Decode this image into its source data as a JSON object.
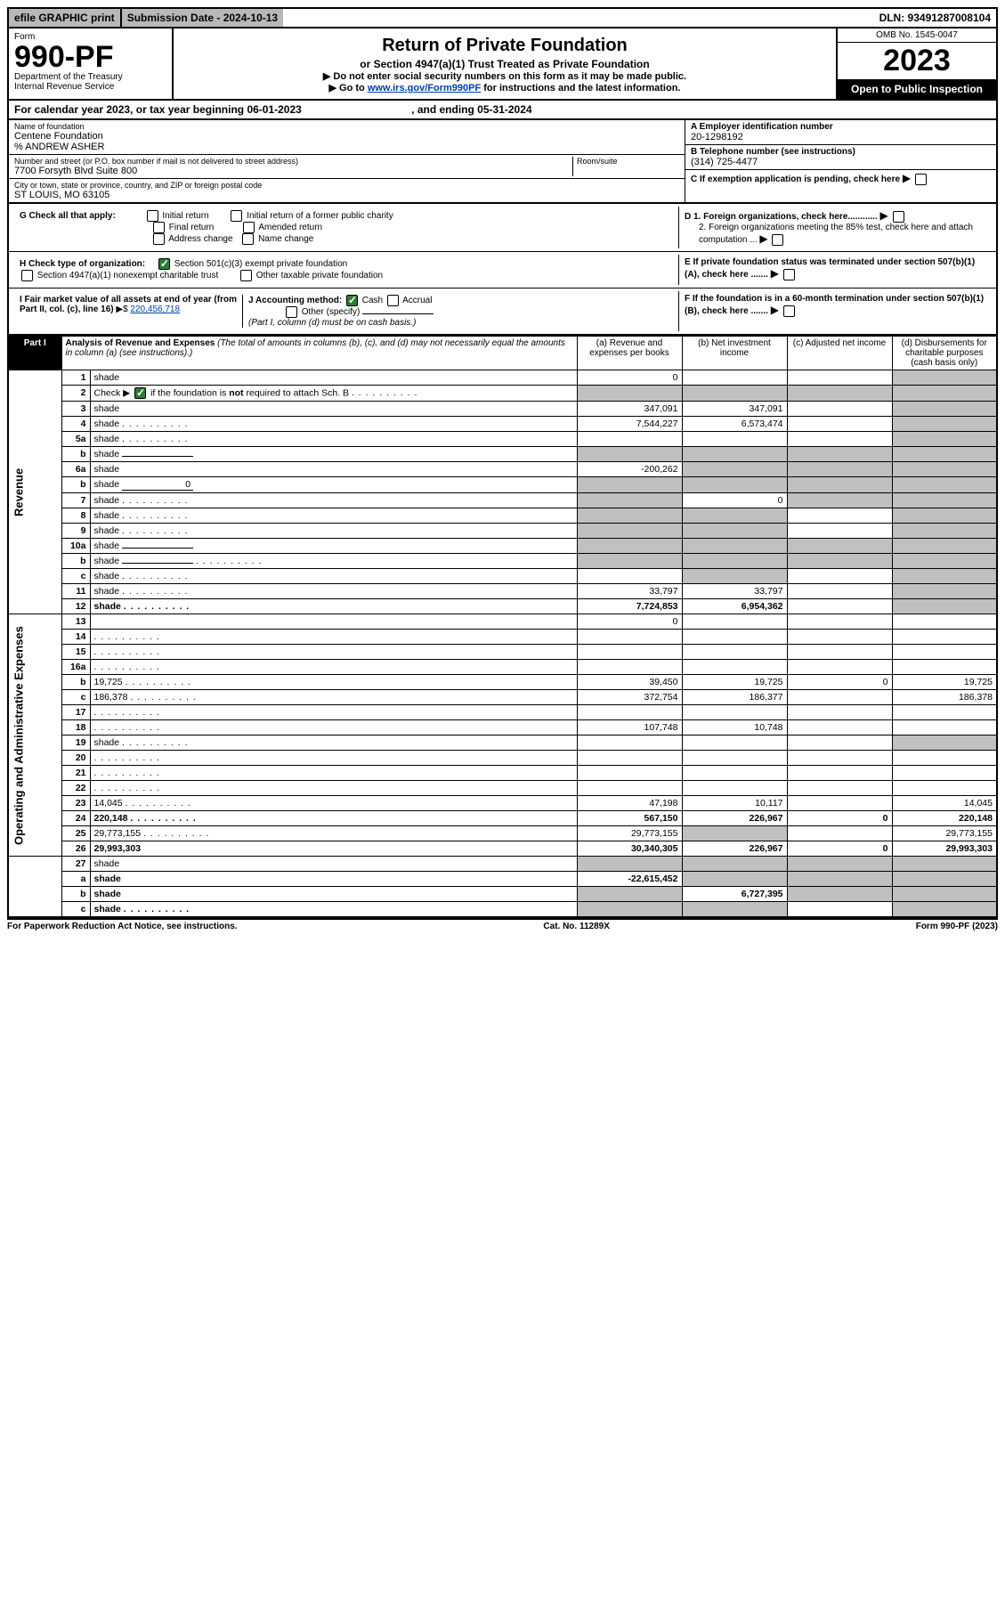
{
  "topbar": {
    "efile": "efile GRAPHIC print",
    "subdate_label": "Submission Date - 2024-10-13",
    "dln": "DLN: 93491287008104"
  },
  "header": {
    "form_word": "Form",
    "form_no": "990-PF",
    "dept1": "Department of the Treasury",
    "dept2": "Internal Revenue Service",
    "title": "Return of Private Foundation",
    "subtitle": "or Section 4947(a)(1) Trust Treated as Private Foundation",
    "note1": "▶ Do not enter social security numbers on this form as it may be made public.",
    "note2_pre": "▶ Go to ",
    "note2_link": "www.irs.gov/Form990PF",
    "note2_post": " for instructions and the latest information.",
    "omb": "OMB No. 1545-0047",
    "year": "2023",
    "open": "Open to Public Inspection"
  },
  "cal": {
    "text_a": "For calendar year 2023, or tax year beginning 06-01-2023",
    "text_b": ", and ending 05-31-2024"
  },
  "info": {
    "name_label": "Name of foundation",
    "name": "Centene Foundation",
    "care_of": "% ANDREW ASHER",
    "addr_label": "Number and street (or P.O. box number if mail is not delivered to street address)",
    "addr": "7700 Forsyth Blvd Suite 800",
    "room_label": "Room/suite",
    "city_label": "City or town, state or province, country, and ZIP or foreign postal code",
    "city": "ST LOUIS, MO  63105",
    "a_label": "A Employer identification number",
    "a_val": "20-1298192",
    "b_label": "B Telephone number (see instructions)",
    "b_val": "(314) 725-4477",
    "c_label": "C If exemption application is pending, check here",
    "d1_label": "D 1. Foreign organizations, check here............",
    "d2_label": "2. Foreign organizations meeting the 85% test, check here and attach computation ...",
    "e_label": "E  If private foundation status was terminated under section 507(b)(1)(A), check here .......",
    "f_label": "F  If the foundation is in a 60-month termination under section 507(b)(1)(B), check here .......",
    "g_label": "G Check all that apply:",
    "g_opts": [
      "Initial return",
      "Initial return of a former public charity",
      "Final return",
      "Amended return",
      "Address change",
      "Name change"
    ],
    "h_label": "H Check type of organization:",
    "h1": "Section 501(c)(3) exempt private foundation",
    "h2": "Section 4947(a)(1) nonexempt charitable trust",
    "h3": "Other taxable private foundation",
    "i_label": "I Fair market value of all assets at end of year (from Part II, col. (c), line 16)",
    "i_val": "220,456,718",
    "j_label": "J Accounting method:",
    "j_cash": "Cash",
    "j_accrual": "Accrual",
    "j_other": "Other (specify)",
    "j_note": "(Part I, column (d) must be on cash basis.)"
  },
  "part1": {
    "label": "Part I",
    "title": "Analysis of Revenue and Expenses",
    "note": " (The total of amounts in columns (b), (c), and (d) may not necessarily equal the amounts in column (a) (see instructions).)",
    "col_a": "(a)   Revenue and expenses per books",
    "col_b": "(b)   Net investment income",
    "col_c": "(c)   Adjusted net income",
    "col_d": "(d)   Disbursements for charitable purposes (cash basis only)"
  },
  "sections": {
    "revenue": "Revenue",
    "expenses": "Operating and Administrative Expenses"
  },
  "rows": [
    {
      "n": "1",
      "d": "shade",
      "a": "0",
      "b": "",
      "c": ""
    },
    {
      "n": "2",
      "d": "shade",
      "dots": true,
      "a": "shade",
      "b": "shade",
      "c": "shade"
    },
    {
      "n": "3",
      "d": "shade",
      "a": "347,091",
      "b": "347,091",
      "c": ""
    },
    {
      "n": "4",
      "d": "shade",
      "dots": true,
      "a": "7,544,227",
      "b": "6,573,474",
      "c": ""
    },
    {
      "n": "5a",
      "d": "shade",
      "dots": true,
      "a": "",
      "b": "",
      "c": ""
    },
    {
      "n": "b",
      "d": "shade",
      "inline": "",
      "a": "shade",
      "b": "shade",
      "c": "shade"
    },
    {
      "n": "6a",
      "d": "shade",
      "a": "-200,262",
      "b": "shade",
      "c": "shade"
    },
    {
      "n": "b",
      "d": "shade",
      "inline": "0",
      "a": "shade",
      "b": "shade",
      "c": "shade"
    },
    {
      "n": "7",
      "d": "shade",
      "dots": true,
      "a": "shade",
      "b": "0",
      "c": "shade"
    },
    {
      "n": "8",
      "d": "shade",
      "dots": true,
      "a": "shade",
      "b": "shade",
      "c": ""
    },
    {
      "n": "9",
      "d": "shade",
      "dots": true,
      "a": "shade",
      "b": "shade",
      "c": ""
    },
    {
      "n": "10a",
      "d": "shade",
      "inline": "",
      "a": "shade",
      "b": "shade",
      "c": "shade"
    },
    {
      "n": "b",
      "d": "shade",
      "dots": true,
      "inline": "",
      "a": "shade",
      "b": "shade",
      "c": "shade"
    },
    {
      "n": "c",
      "d": "shade",
      "dots": true,
      "a": "",
      "b": "shade",
      "c": ""
    },
    {
      "n": "11",
      "d": "shade",
      "dots": true,
      "a": "33,797",
      "b": "33,797",
      "c": ""
    },
    {
      "n": "12",
      "d": "shade",
      "dots": true,
      "bold": true,
      "a": "7,724,853",
      "b": "6,954,362",
      "c": ""
    }
  ],
  "exp_rows": [
    {
      "n": "13",
      "d": "",
      "a": "0",
      "b": "",
      "c": ""
    },
    {
      "n": "14",
      "d": "",
      "dots": true,
      "a": "",
      "b": "",
      "c": ""
    },
    {
      "n": "15",
      "d": "",
      "dots": true,
      "a": "",
      "b": "",
      "c": ""
    },
    {
      "n": "16a",
      "d": "",
      "dots": true,
      "a": "",
      "b": "",
      "c": ""
    },
    {
      "n": "b",
      "d": "19,725",
      "dots": true,
      "a": "39,450",
      "b": "19,725",
      "c": "0"
    },
    {
      "n": "c",
      "d": "186,378",
      "dots": true,
      "a": "372,754",
      "b": "186,377",
      "c": ""
    },
    {
      "n": "17",
      "d": "",
      "dots": true,
      "a": "",
      "b": "",
      "c": ""
    },
    {
      "n": "18",
      "d": "",
      "dots": true,
      "a": "107,748",
      "b": "10,748",
      "c": ""
    },
    {
      "n": "19",
      "d": "shade",
      "dots": true,
      "a": "",
      "b": "",
      "c": ""
    },
    {
      "n": "20",
      "d": "",
      "dots": true,
      "a": "",
      "b": "",
      "c": ""
    },
    {
      "n": "21",
      "d": "",
      "dots": true,
      "a": "",
      "b": "",
      "c": ""
    },
    {
      "n": "22",
      "d": "",
      "dots": true,
      "a": "",
      "b": "",
      "c": ""
    },
    {
      "n": "23",
      "d": "14,045",
      "dots": true,
      "a": "47,198",
      "b": "10,117",
      "c": ""
    },
    {
      "n": "24",
      "d": "220,148",
      "dots": true,
      "bold": true,
      "a": "567,150",
      "b": "226,967",
      "c": "0"
    },
    {
      "n": "25",
      "d": "29,773,155",
      "dots": true,
      "a": "29,773,155",
      "b": "shade",
      "c": ""
    },
    {
      "n": "26",
      "d": "29,993,303",
      "bold": true,
      "a": "30,340,305",
      "b": "226,967",
      "c": "0"
    }
  ],
  "bottom_rows": [
    {
      "n": "27",
      "d": "shade",
      "a": "shade",
      "b": "shade",
      "c": "shade"
    },
    {
      "n": "a",
      "d": "shade",
      "bold": true,
      "a": "-22,615,452",
      "b": "shade",
      "c": "shade"
    },
    {
      "n": "b",
      "d": "shade",
      "bold": true,
      "a": "shade",
      "b": "6,727,395",
      "c": "shade"
    },
    {
      "n": "c",
      "d": "shade",
      "dots": true,
      "bold": true,
      "a": "shade",
      "b": "shade",
      "c": ""
    }
  ],
  "footer": {
    "left": "For Paperwork Reduction Act Notice, see instructions.",
    "mid": "Cat. No. 11289X",
    "right": "Form 990-PF (2023)"
  }
}
